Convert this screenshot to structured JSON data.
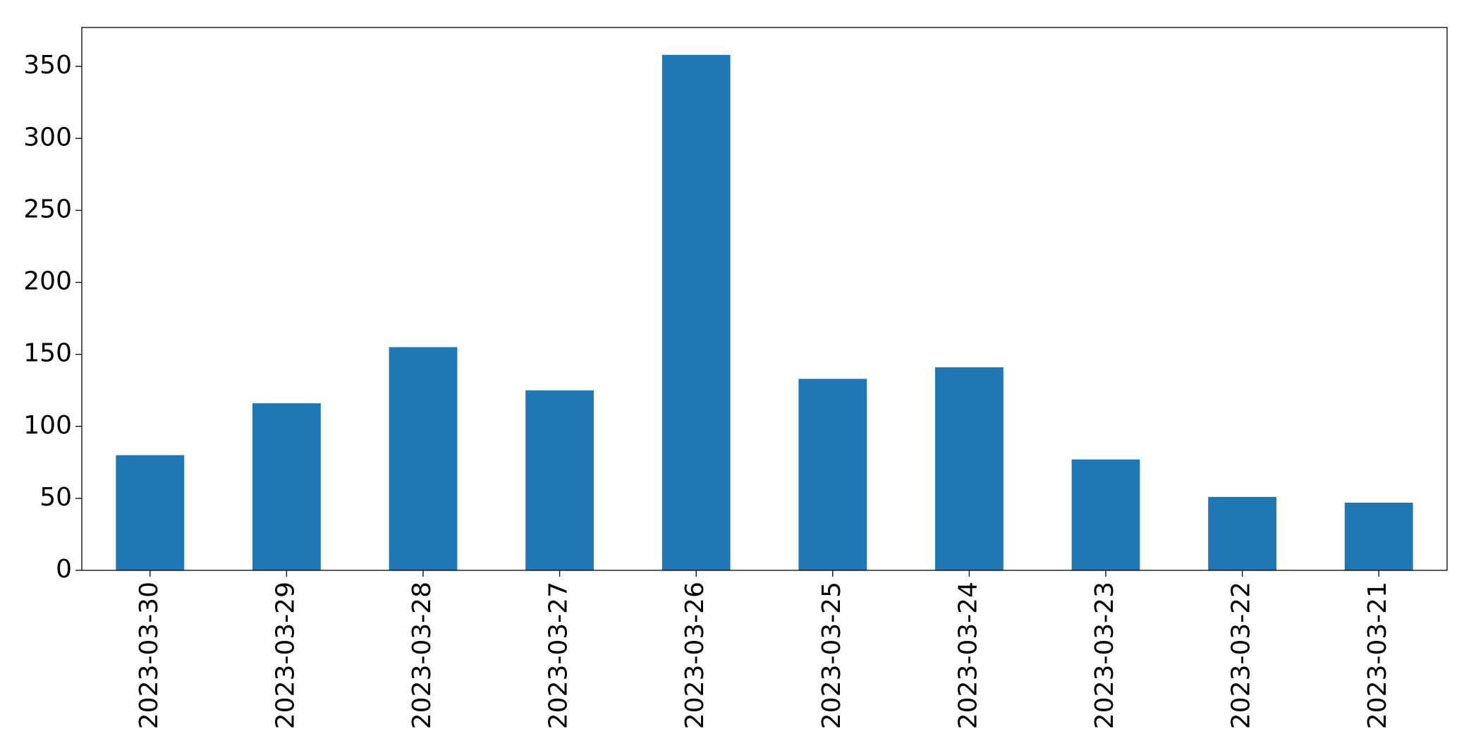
{
  "chart_data": {
    "type": "bar",
    "categories": [
      "2023-03-30",
      "2023-03-29",
      "2023-03-28",
      "2023-03-27",
      "2023-03-26",
      "2023-03-25",
      "2023-03-24",
      "2023-03-23",
      "2023-03-22",
      "2023-03-21"
    ],
    "values": [
      80,
      116,
      155,
      125,
      358,
      133,
      141,
      77,
      51,
      47
    ],
    "color": "#1f77b4",
    "ylim": [
      0,
      377
    ],
    "yticks": [
      0,
      50,
      100,
      150,
      200,
      250,
      300,
      350
    ],
    "grid": false
  }
}
